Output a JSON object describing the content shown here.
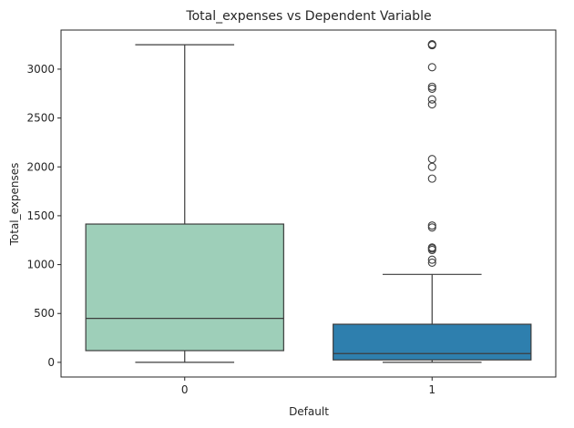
{
  "chart_data": {
    "type": "box",
    "title": "Total_expenses vs Dependent Variable",
    "xlabel": "Default",
    "ylabel": "Total_expenses",
    "categories": [
      "0",
      "1"
    ],
    "ylim": [
      -150,
      3400
    ],
    "yticks": [
      0,
      500,
      1000,
      1500,
      2000,
      2500,
      3000
    ],
    "grid": false,
    "boxes": [
      {
        "category": "0",
        "whisker_low": 0,
        "q1": 120,
        "median": 450,
        "q3": 1415,
        "whisker_high": 3250,
        "outliers": [],
        "color": "#9ecfb9"
      },
      {
        "category": "1",
        "whisker_low": 0,
        "q1": 25,
        "median": 90,
        "q3": 390,
        "whisker_high": 900,
        "outliers": [
          1020,
          1050,
          1150,
          1165,
          1175,
          1380,
          1400,
          1880,
          2000,
          2080,
          2640,
          2690,
          2800,
          2820,
          3020,
          3245,
          3250,
          3255
        ],
        "color": "#2e7fae"
      }
    ],
    "line_color": "#3d3d3d"
  }
}
